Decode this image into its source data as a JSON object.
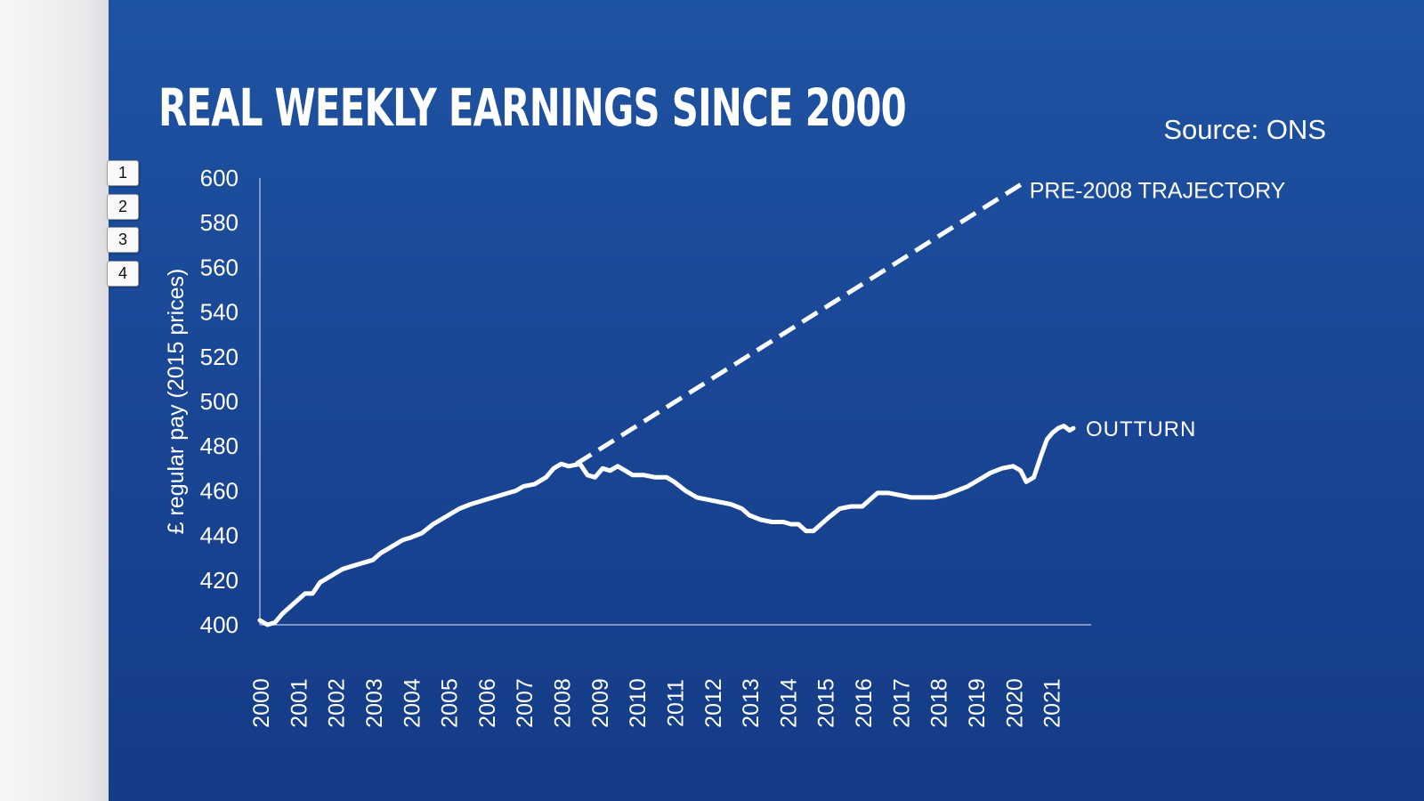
{
  "slide": {
    "title": "REAL WEEKLY EARNINGS SINCE 2000",
    "source": "Source: ONS"
  },
  "side_tabs": [
    "1",
    "2",
    "3",
    "4"
  ],
  "colors": {
    "background_top": "#1f53a3",
    "background_bottom": "#143b87",
    "foreground": "#ffffff",
    "axis": "#9fb2d6"
  },
  "chart_data": {
    "type": "line",
    "title": "REAL WEEKLY EARNINGS SINCE 2000",
    "ylabel": "£ regular pay (2015 prices)",
    "xlabel": "",
    "ylim": [
      400,
      600
    ],
    "xlim": [
      2000,
      2021.7
    ],
    "y_ticks": [
      400,
      420,
      440,
      460,
      480,
      500,
      520,
      540,
      560,
      580,
      600
    ],
    "x_ticks": [
      "2000",
      "2001",
      "2002",
      "2003",
      "2004",
      "2005",
      "2006",
      "2007",
      "2008",
      "2009",
      "2010",
      "2011",
      "2012",
      "2013",
      "2014",
      "2015",
      "2016",
      "2017",
      "2018",
      "2019",
      "2020",
      "2021"
    ],
    "grid": false,
    "series": [
      {
        "name": "OUTTURN",
        "style": "solid",
        "points": [
          [
            2000.0,
            402
          ],
          [
            2000.2,
            400
          ],
          [
            2000.4,
            401
          ],
          [
            2000.6,
            405
          ],
          [
            2000.8,
            408
          ],
          [
            2001.0,
            411
          ],
          [
            2001.2,
            414
          ],
          [
            2001.4,
            414
          ],
          [
            2001.6,
            419
          ],
          [
            2001.8,
            421
          ],
          [
            2002.0,
            423
          ],
          [
            2002.2,
            425
          ],
          [
            2002.4,
            426
          ],
          [
            2002.6,
            427
          ],
          [
            2002.8,
            428
          ],
          [
            2003.0,
            429
          ],
          [
            2003.2,
            432
          ],
          [
            2003.4,
            434
          ],
          [
            2003.6,
            436
          ],
          [
            2003.8,
            438
          ],
          [
            2004.0,
            439
          ],
          [
            2004.3,
            441
          ],
          [
            2004.6,
            445
          ],
          [
            2005.0,
            449
          ],
          [
            2005.3,
            452
          ],
          [
            2005.6,
            454
          ],
          [
            2006.0,
            456
          ],
          [
            2006.4,
            458
          ],
          [
            2006.8,
            460
          ],
          [
            2007.0,
            462
          ],
          [
            2007.3,
            463
          ],
          [
            2007.6,
            466
          ],
          [
            2007.8,
            470
          ],
          [
            2008.0,
            472
          ],
          [
            2008.2,
            471
          ],
          [
            2008.5,
            472
          ],
          [
            2008.7,
            467
          ],
          [
            2008.9,
            466
          ],
          [
            2009.1,
            470
          ],
          [
            2009.3,
            469
          ],
          [
            2009.5,
            471
          ],
          [
            2009.7,
            469
          ],
          [
            2009.9,
            467
          ],
          [
            2010.2,
            467
          ],
          [
            2010.5,
            466
          ],
          [
            2010.8,
            466
          ],
          [
            2011.0,
            464
          ],
          [
            2011.3,
            460
          ],
          [
            2011.6,
            457
          ],
          [
            2011.9,
            456
          ],
          [
            2012.2,
            455
          ],
          [
            2012.5,
            454
          ],
          [
            2012.8,
            452
          ],
          [
            2013.0,
            449
          ],
          [
            2013.3,
            447
          ],
          [
            2013.6,
            446
          ],
          [
            2013.9,
            446
          ],
          [
            2014.1,
            445
          ],
          [
            2014.3,
            445
          ],
          [
            2014.5,
            442
          ],
          [
            2014.7,
            442
          ],
          [
            2014.9,
            445
          ],
          [
            2015.1,
            448
          ],
          [
            2015.4,
            452
          ],
          [
            2015.7,
            453
          ],
          [
            2016.0,
            453
          ],
          [
            2016.2,
            456
          ],
          [
            2016.4,
            459
          ],
          [
            2016.7,
            459
          ],
          [
            2017.0,
            458
          ],
          [
            2017.3,
            457
          ],
          [
            2017.6,
            457
          ],
          [
            2017.9,
            457
          ],
          [
            2018.2,
            458
          ],
          [
            2018.5,
            460
          ],
          [
            2018.8,
            462
          ],
          [
            2019.1,
            465
          ],
          [
            2019.4,
            468
          ],
          [
            2019.7,
            470
          ],
          [
            2020.0,
            471
          ],
          [
            2020.2,
            469
          ],
          [
            2020.35,
            464
          ],
          [
            2020.55,
            466
          ],
          [
            2020.75,
            476
          ],
          [
            2020.9,
            483
          ],
          [
            2021.05,
            486
          ],
          [
            2021.2,
            488
          ],
          [
            2021.35,
            489
          ],
          [
            2021.5,
            487
          ],
          [
            2021.6,
            488
          ]
        ]
      },
      {
        "name": "PRE-2008 TRAJECTORY",
        "style": "dashed",
        "points": [
          [
            2008.4,
            472
          ],
          [
            2020.2,
            597
          ]
        ]
      }
    ]
  }
}
